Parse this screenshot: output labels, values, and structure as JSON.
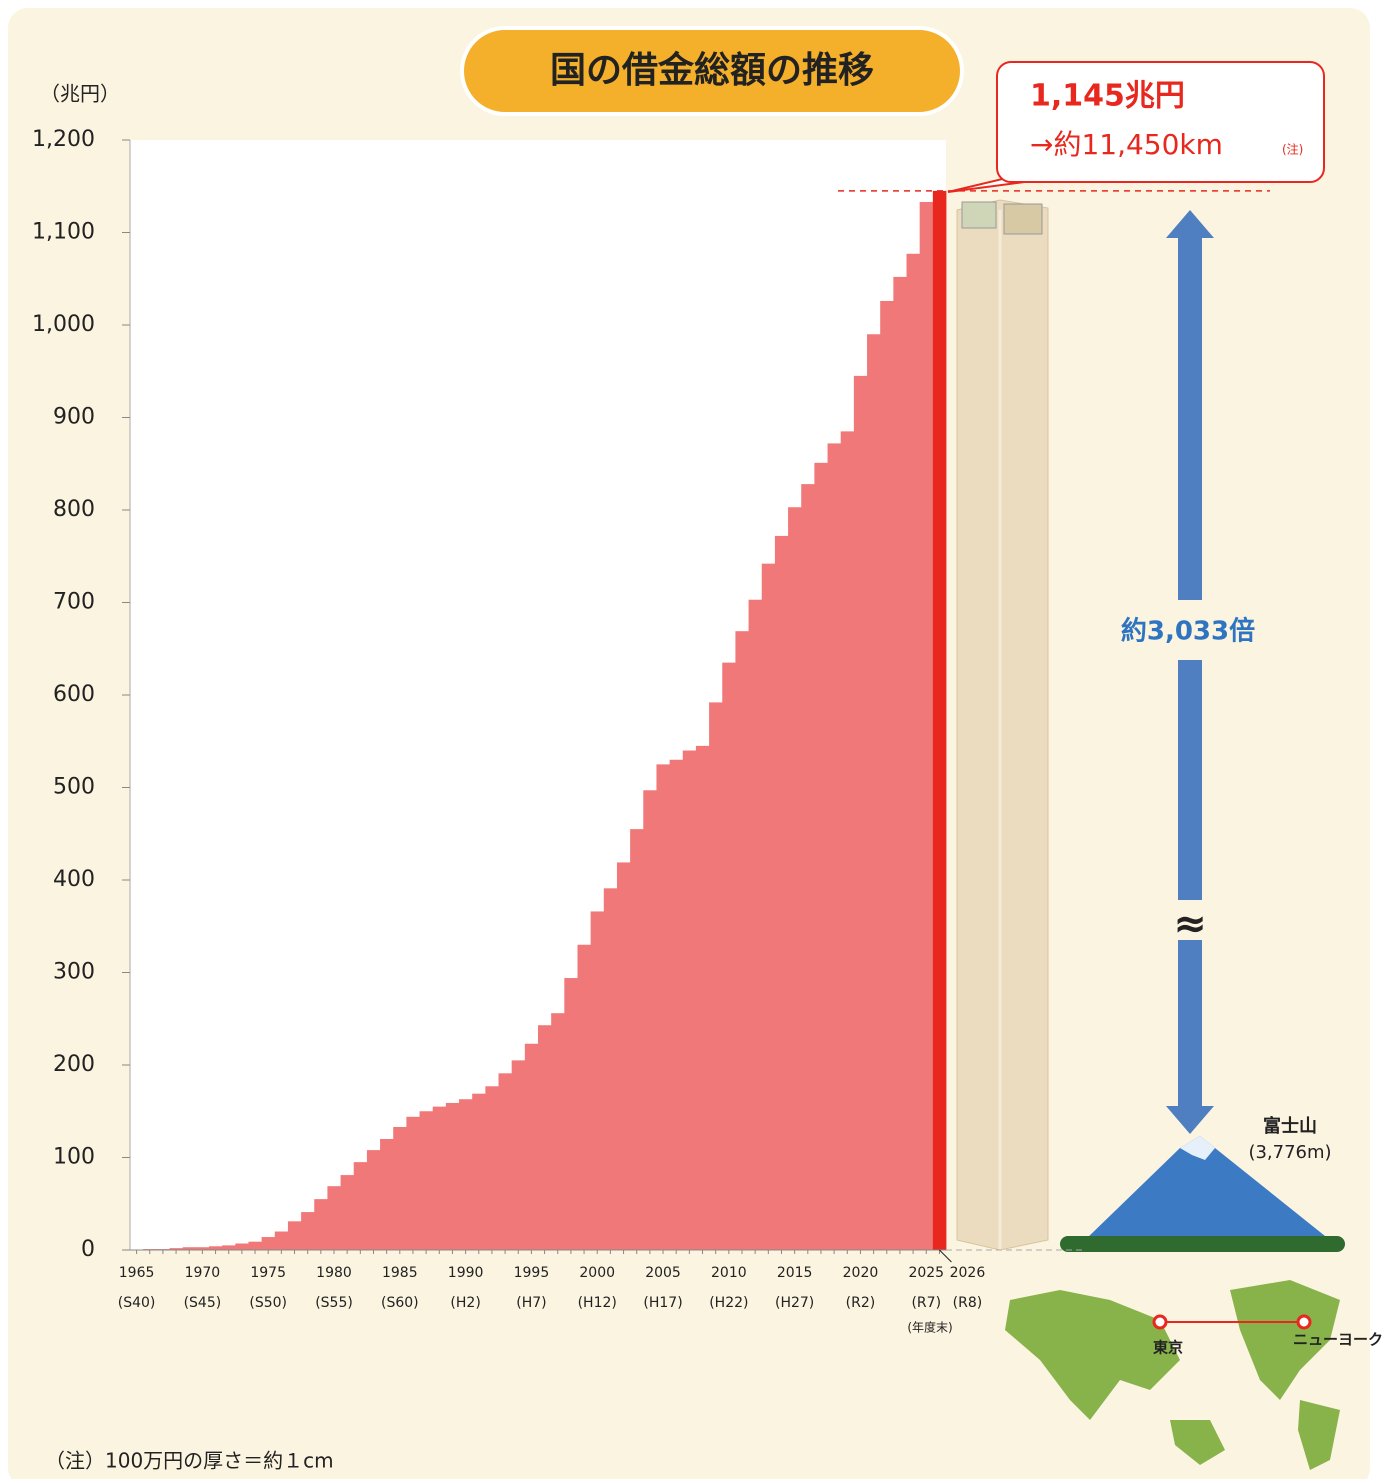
{
  "chart_data": {
    "type": "bar",
    "title": "国の借金総額の推移",
    "y_unit": "（兆円）",
    "x": [
      1965,
      1966,
      1967,
      1968,
      1969,
      1970,
      1971,
      1972,
      1973,
      1974,
      1975,
      1976,
      1977,
      1978,
      1979,
      1980,
      1981,
      1982,
      1983,
      1984,
      1985,
      1986,
      1987,
      1988,
      1989,
      1990,
      1991,
      1992,
      1993,
      1994,
      1995,
      1996,
      1997,
      1998,
      1999,
      2000,
      2001,
      2002,
      2003,
      2004,
      2005,
      2006,
      2007,
      2008,
      2009,
      2010,
      2011,
      2012,
      2013,
      2014,
      2015,
      2016,
      2017,
      2018,
      2019,
      2020,
      2021,
      2022,
      2023,
      2024,
      2025,
      2026
    ],
    "values": [
      0.3,
      1,
      1,
      2,
      3,
      3,
      4,
      5,
      7,
      9,
      14,
      20,
      31,
      41,
      55,
      69,
      81,
      95,
      108,
      120,
      133,
      144,
      150,
      155,
      159,
      163,
      169,
      177,
      191,
      205,
      223,
      243,
      256,
      294,
      330,
      366,
      391,
      419,
      455,
      497,
      525,
      530,
      540,
      545,
      592,
      635,
      669,
      703,
      742,
      772,
      803,
      828,
      851,
      872,
      885,
      945,
      990,
      1026,
      1052,
      1077,
      1133,
      1145
    ],
    "colors": [
      "#f07878",
      "#f07878",
      "#f07878",
      "#f07878",
      "#f07878",
      "#f07878",
      "#f07878",
      "#f07878",
      "#f07878",
      "#f07878",
      "#f07878",
      "#f07878",
      "#f07878",
      "#f07878",
      "#f07878",
      "#f07878",
      "#f07878",
      "#f07878",
      "#f07878",
      "#f07878",
      "#f07878",
      "#f07878",
      "#f07878",
      "#f07878",
      "#f07878",
      "#f07878",
      "#f07878",
      "#f07878",
      "#f07878",
      "#f07878",
      "#f07878",
      "#f07878",
      "#f07878",
      "#f07878",
      "#f07878",
      "#f07878",
      "#f07878",
      "#f07878",
      "#f07878",
      "#f07878",
      "#f07878",
      "#f07878",
      "#f07878",
      "#f07878",
      "#f07878",
      "#f07878",
      "#f07878",
      "#f07878",
      "#f07878",
      "#f07878",
      "#f07878",
      "#f07878",
      "#f07878",
      "#f07878",
      "#f07878",
      "#f07878",
      "#f07878",
      "#f07878",
      "#f07878",
      "#f07878",
      "#f07878",
      "#e8281f"
    ],
    "xlim": [
      1964.5,
      2026.5
    ],
    "xticks": [
      {
        "value": 1965,
        "label": "1965",
        "sublabel": "(S40)"
      },
      {
        "value": 1970,
        "label": "1970",
        "sublabel": "(S45)"
      },
      {
        "value": 1975,
        "label": "1975",
        "sublabel": "(S50)"
      },
      {
        "value": 1980,
        "label": "1980",
        "sublabel": "(S55)"
      },
      {
        "value": 1985,
        "label": "1985",
        "sublabel": "(S60)"
      },
      {
        "value": 1990,
        "label": "1990",
        "sublabel": "(H2)"
      },
      {
        "value": 1995,
        "label": "1995",
        "sublabel": "(H7)"
      },
      {
        "value": 2000,
        "label": "2000",
        "sublabel": "(H12)"
      },
      {
        "value": 2005,
        "label": "2005",
        "sublabel": "(H17)"
      },
      {
        "value": 2010,
        "label": "2010",
        "sublabel": "(H22)"
      },
      {
        "value": 2015,
        "label": "2015",
        "sublabel": "(H27)"
      },
      {
        "value": 2020,
        "label": "2020",
        "sublabel": "(R2)"
      },
      {
        "value": 2025,
        "label": "2025",
        "sublabel": "(R7)"
      },
      {
        "value": 2026,
        "label": "2026",
        "sublabel": "(R8)"
      }
    ],
    "ylim": [
      0,
      1200
    ],
    "yticks": [
      0,
      100,
      200,
      300,
      400,
      500,
      600,
      700,
      800,
      900,
      {
        "value": 1000,
        "label": "1,000"
      },
      {
        "value": 1100,
        "label": "1,100"
      },
      {
        "value": 1200,
        "label": "1,200"
      }
    ],
    "annotations": {
      "fiscal_year_end": "(年度末)",
      "callout_value": "1,145兆円",
      "callout_km": "→約11,450km",
      "callout_note": "(注)",
      "ratio": "約3,033倍",
      "approx": "≈",
      "fuji": "富士山",
      "fuji_height": "(3,776m)",
      "tokyo": "東京",
      "newyork": "ニューヨーク",
      "footnote": "（注）100万円の厚さ＝約１cm"
    }
  }
}
